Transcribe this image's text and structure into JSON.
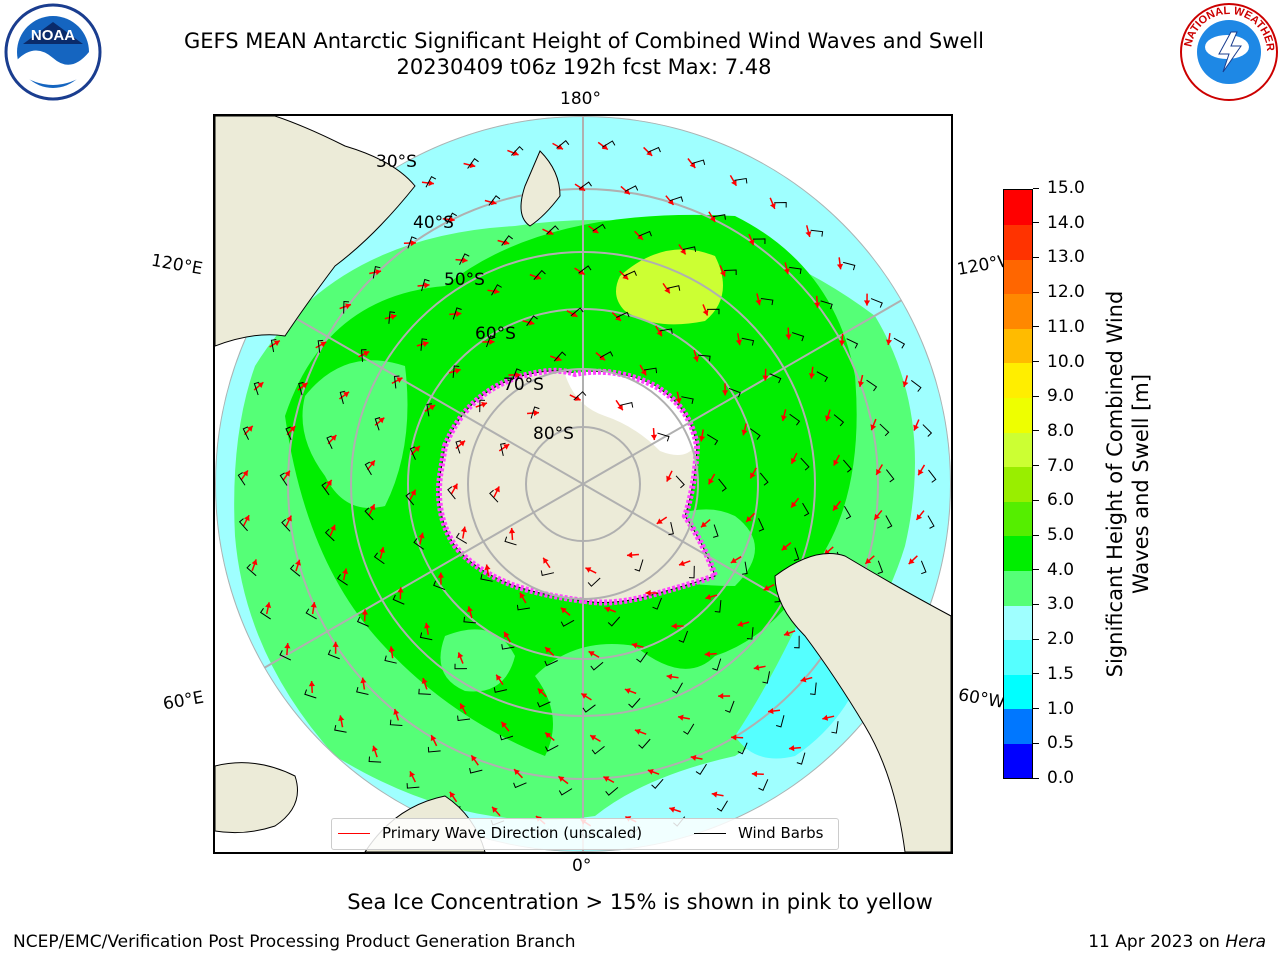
{
  "header": {
    "title_line1": "GEFS MEAN Antarctic Significant Height of Combined Wind Waves and Swell",
    "title_line2": "20230409 t06z 192h fcst   Max: 7.48"
  },
  "map": {
    "longitude_labels": {
      "top": "180°",
      "bottom": "0°",
      "upper_left": "120°E",
      "upper_right": "120°W",
      "lower_left": "60°E",
      "lower_right": "60°W"
    },
    "latitude_labels": [
      "30°S",
      "40°S",
      "50°S",
      "60°S",
      "70°S",
      "80°S"
    ],
    "colors": {
      "land": "#ecebd8",
      "ocean_low": "#9fffff",
      "ocean_mid": "#55ff77",
      "ocean_high": "#00ee00",
      "peak": "#ccff33",
      "sea_ice": "#ff44ff",
      "arrow": "#ff0000"
    }
  },
  "legend": {
    "primary_wave": "Primary Wave Direction (unscaled)",
    "wind_barbs": "Wind Barbs"
  },
  "colorbar": {
    "label": "Significant Height of Combined Wind Waves and Swell [m]",
    "ticks": [
      "0.0",
      "0.5",
      "1.0",
      "1.5",
      "2.0",
      "3.0",
      "4.0",
      "5.0",
      "6.0",
      "7.0",
      "8.0",
      "9.0",
      "10.0",
      "11.0",
      "12.0",
      "13.0",
      "14.0",
      "15.0"
    ],
    "colors": [
      "#0000ff",
      "#0077ff",
      "#00ffff",
      "#55ffff",
      "#9fffff",
      "#55ff77",
      "#00ee00",
      "#55ee00",
      "#99ee00",
      "#ccff33",
      "#eeff00",
      "#ffee00",
      "#ffbb00",
      "#ff8800",
      "#ff6600",
      "#ff3300",
      "#ff0000"
    ]
  },
  "notes": {
    "sea_ice": "Sea Ice Concentration > 15% is shown in pink to yellow"
  },
  "footer": {
    "left": "NCEP/EMC/Verification Post Processing Product Generation Branch",
    "date": "11 Apr 2023 on ",
    "host": "Hera"
  }
}
